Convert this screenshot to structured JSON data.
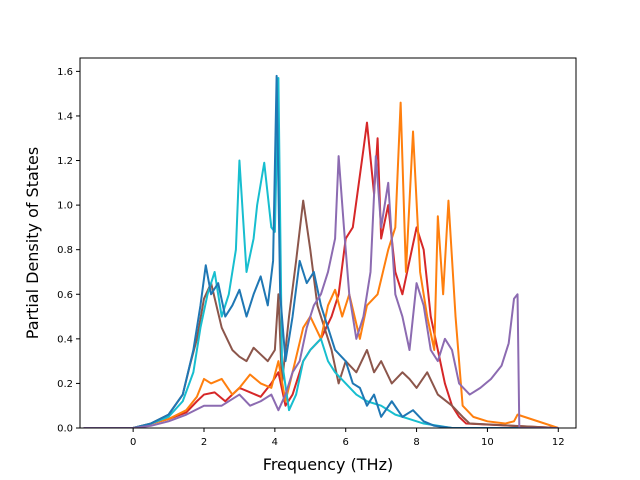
{
  "chart_data": {
    "type": "line",
    "title": "",
    "xlabel": "Frequency (THz)",
    "ylabel": "Partial Density of States",
    "xlim": [
      -1.5,
      12.5
    ],
    "ylim": [
      0.0,
      1.66
    ],
    "xticks": [
      0,
      2,
      4,
      6,
      8,
      10,
      12
    ],
    "xtick_labels": [
      "0",
      "2",
      "4",
      "6",
      "8",
      "10",
      "12"
    ],
    "yticks": [
      0.0,
      0.2,
      0.4,
      0.6,
      0.8,
      1.0,
      1.2,
      1.4,
      1.6
    ],
    "ytick_labels": [
      "0.0",
      "0.2",
      "0.4",
      "0.6",
      "0.8",
      "1.0",
      "1.2",
      "1.4",
      "1.6"
    ],
    "grid": false,
    "legend": "none",
    "series": [
      {
        "color": "#d62728",
        "x": [
          -1.4,
          0,
          0.5,
          1.0,
          1.5,
          1.8,
          2.0,
          2.3,
          2.6,
          3.0,
          3.3,
          3.6,
          3.9,
          4.1,
          4.3,
          4.5,
          4.8,
          5.0,
          5.3,
          5.6,
          5.8,
          6.0,
          6.2,
          6.5,
          6.6,
          6.8,
          6.9,
          7.0,
          7.2,
          7.4,
          7.6,
          7.8,
          8.0,
          8.2,
          8.4,
          8.6,
          8.8,
          9.0,
          9.2,
          9.4,
          12.0
        ],
        "y": [
          0,
          0,
          0.02,
          0.04,
          0.07,
          0.12,
          0.15,
          0.16,
          0.12,
          0.18,
          0.16,
          0.14,
          0.2,
          0.25,
          0.1,
          0.15,
          0.3,
          0.35,
          0.4,
          0.5,
          0.6,
          0.85,
          0.9,
          1.25,
          1.37,
          1.05,
          1.3,
          0.85,
          1.0,
          0.7,
          0.6,
          0.75,
          0.9,
          0.8,
          0.5,
          0.35,
          0.2,
          0.1,
          0.05,
          0.02,
          0
        ]
      },
      {
        "color": "#8c564b",
        "x": [
          -1.4,
          0,
          0.5,
          1.0,
          1.4,
          1.6,
          1.8,
          2.0,
          2.2,
          2.5,
          2.8,
          3.0,
          3.2,
          3.4,
          3.6,
          3.8,
          4.0,
          4.1,
          4.2,
          4.4,
          4.6,
          4.8,
          5.0,
          5.2,
          5.4,
          5.6,
          5.8,
          6.0,
          6.3,
          6.6,
          6.8,
          7.0,
          7.3,
          7.6,
          7.8,
          8.0,
          8.3,
          8.6,
          9.0,
          9.3,
          9.5,
          12.0
        ],
        "y": [
          0,
          0,
          0.02,
          0.06,
          0.15,
          0.28,
          0.4,
          0.58,
          0.65,
          0.45,
          0.35,
          0.32,
          0.3,
          0.36,
          0.33,
          0.3,
          0.35,
          0.6,
          0.2,
          0.5,
          0.75,
          1.02,
          0.8,
          0.55,
          0.45,
          0.35,
          0.2,
          0.3,
          0.25,
          0.35,
          0.25,
          0.3,
          0.2,
          0.25,
          0.22,
          0.18,
          0.25,
          0.15,
          0.1,
          0.05,
          0.02,
          0
        ]
      },
      {
        "color": "#ff7f0e",
        "x": [
          -1.4,
          0,
          0.5,
          1.0,
          1.5,
          1.8,
          2.0,
          2.2,
          2.5,
          2.8,
          3.0,
          3.3,
          3.6,
          3.9,
          4.1,
          4.3,
          4.5,
          4.8,
          5.0,
          5.3,
          5.5,
          5.7,
          5.9,
          6.1,
          6.4,
          6.6,
          6.9,
          7.2,
          7.4,
          7.55,
          7.7,
          7.9,
          8.1,
          8.3,
          8.5,
          8.6,
          8.75,
          8.9,
          9.1,
          9.3,
          9.6,
          10.0,
          10.5,
          10.75,
          10.85,
          12.0
        ],
        "y": [
          0,
          0,
          0.02,
          0.04,
          0.08,
          0.14,
          0.22,
          0.2,
          0.22,
          0.15,
          0.18,
          0.24,
          0.2,
          0.18,
          0.3,
          0.12,
          0.25,
          0.45,
          0.5,
          0.4,
          0.55,
          0.62,
          0.5,
          0.6,
          0.4,
          0.55,
          0.6,
          0.8,
          0.9,
          1.46,
          0.7,
          1.33,
          0.7,
          0.5,
          0.35,
          0.95,
          0.6,
          1.02,
          0.5,
          0.1,
          0.05,
          0.03,
          0.02,
          0.03,
          0.06,
          0
        ]
      },
      {
        "color": "#17becf",
        "x": [
          -1.4,
          0,
          0.5,
          1.0,
          1.4,
          1.7,
          1.9,
          2.1,
          2.3,
          2.5,
          2.7,
          2.9,
          3.0,
          3.2,
          3.4,
          3.5,
          3.7,
          3.9,
          4.0,
          4.1,
          4.2,
          4.4,
          4.6,
          4.8,
          5.0,
          5.3,
          5.5,
          5.7,
          6.0,
          6.3,
          6.6,
          7.0,
          7.4,
          7.8,
          8.2,
          8.6,
          9.0,
          12.0
        ],
        "y": [
          0,
          0,
          0.02,
          0.05,
          0.12,
          0.25,
          0.45,
          0.6,
          0.7,
          0.5,
          0.6,
          0.8,
          1.2,
          0.7,
          0.85,
          1.0,
          1.19,
          0.9,
          0.88,
          1.57,
          0.3,
          0.08,
          0.15,
          0.3,
          0.35,
          0.4,
          0.3,
          0.25,
          0.2,
          0.15,
          0.12,
          0.1,
          0.06,
          0.04,
          0.02,
          0.01,
          0,
          0
        ]
      },
      {
        "color": "#1f77b4",
        "x": [
          -1.4,
          0,
          0.5,
          1.0,
          1.4,
          1.7,
          1.9,
          2.05,
          2.2,
          2.4,
          2.6,
          2.8,
          3.0,
          3.2,
          3.4,
          3.6,
          3.8,
          3.95,
          4.05,
          4.15,
          4.3,
          4.5,
          4.7,
          4.9,
          5.1,
          5.3,
          5.5,
          5.7,
          6.0,
          6.2,
          6.4,
          6.6,
          6.8,
          7.0,
          7.3,
          7.6,
          7.9,
          8.2,
          8.5,
          9.0,
          12.0
        ],
        "y": [
          0,
          0,
          0.02,
          0.06,
          0.15,
          0.35,
          0.55,
          0.73,
          0.6,
          0.65,
          0.5,
          0.55,
          0.62,
          0.5,
          0.6,
          0.68,
          0.55,
          0.75,
          1.58,
          0.6,
          0.3,
          0.5,
          0.75,
          0.65,
          0.7,
          0.55,
          0.45,
          0.35,
          0.3,
          0.2,
          0.18,
          0.1,
          0.15,
          0.05,
          0.12,
          0.05,
          0.08,
          0.03,
          0.01,
          0,
          0
        ]
      },
      {
        "color": "#8c6bb1",
        "x": [
          -1.4,
          0,
          0.5,
          1.0,
          1.5,
          2.0,
          2.5,
          3.0,
          3.3,
          3.6,
          3.9,
          4.1,
          4.3,
          4.5,
          4.7,
          4.9,
          5.1,
          5.3,
          5.5,
          5.7,
          5.8,
          5.95,
          6.1,
          6.3,
          6.5,
          6.7,
          6.85,
          7.0,
          7.2,
          7.4,
          7.6,
          7.8,
          8.0,
          8.2,
          8.4,
          8.6,
          8.8,
          9.0,
          9.2,
          9.5,
          9.8,
          10.1,
          10.4,
          10.6,
          10.75,
          10.85,
          10.9,
          12.0
        ],
        "y": [
          0,
          0,
          0.01,
          0.03,
          0.06,
          0.1,
          0.1,
          0.15,
          0.1,
          0.12,
          0.15,
          0.08,
          0.15,
          0.25,
          0.3,
          0.45,
          0.55,
          0.6,
          0.7,
          0.85,
          1.22,
          0.9,
          0.6,
          0.4,
          0.5,
          0.7,
          1.22,
          0.9,
          1.1,
          0.6,
          0.5,
          0.35,
          0.65,
          0.55,
          0.35,
          0.3,
          0.4,
          0.35,
          0.2,
          0.15,
          0.18,
          0.22,
          0.28,
          0.38,
          0.58,
          0.6,
          0.0,
          0
        ]
      }
    ]
  }
}
